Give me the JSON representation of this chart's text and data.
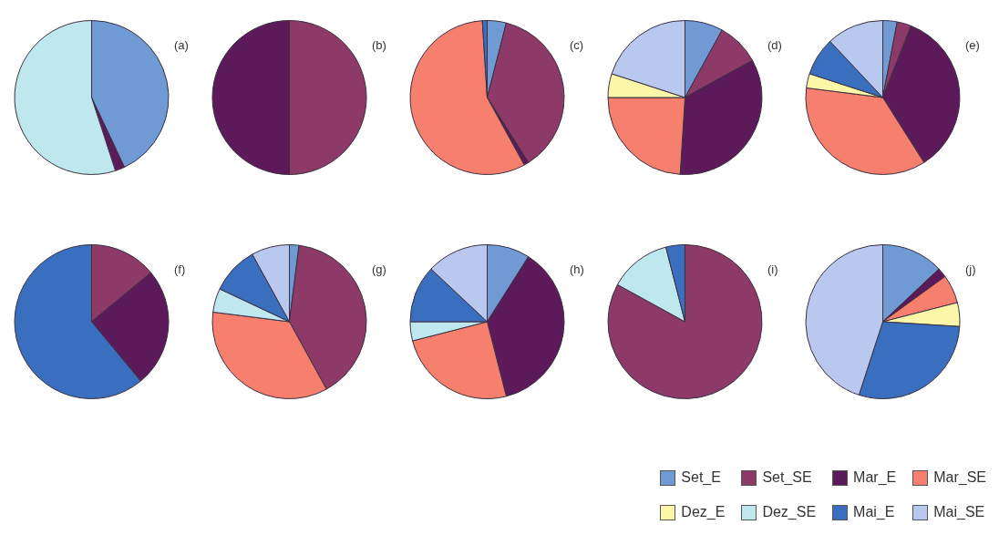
{
  "chart_data": {
    "type": "pie",
    "legend": "bottom right",
    "categories": [
      "Set_E",
      "Set_SE",
      "Mar_E",
      "Mar_SE",
      "Dez_E",
      "Dez_SE",
      "Mai_E",
      "Mai_SE"
    ],
    "colors": [
      "#6f9ad4",
      "#8e3a68",
      "#5c1a5a",
      "#f77f6d",
      "#fcf6a8",
      "#bfe8ee",
      "#3a6fbf",
      "#b8c8ef"
    ],
    "series": [
      {
        "name": "(a)",
        "values": [
          43,
          null,
          2,
          null,
          null,
          55,
          null,
          null
        ]
      },
      {
        "name": "(b)",
        "values": [
          null,
          50,
          50,
          null,
          null,
          null,
          null,
          null
        ]
      },
      {
        "name": "(c)",
        "values": [
          4,
          37,
          1,
          57,
          null,
          null,
          1,
          null
        ]
      },
      {
        "name": "(d)",
        "values": [
          8,
          9,
          34,
          24,
          5,
          null,
          null,
          20
        ]
      },
      {
        "name": "(e)",
        "values": [
          3,
          3,
          35,
          36,
          3,
          null,
          8,
          12
        ]
      },
      {
        "name": "(f)",
        "values": [
          null,
          14,
          25,
          null,
          null,
          null,
          61,
          null
        ]
      },
      {
        "name": "(g)",
        "values": [
          2,
          40,
          null,
          35,
          null,
          5,
          10,
          8
        ]
      },
      {
        "name": "(h)",
        "values": [
          9,
          null,
          37,
          25,
          null,
          4,
          12,
          13
        ]
      },
      {
        "name": "(i)",
        "values": [
          null,
          83,
          null,
          null,
          null,
          13,
          4,
          null
        ]
      },
      {
        "name": "(j)",
        "values": [
          13,
          null,
          2,
          6,
          5,
          null,
          29,
          45
        ]
      }
    ]
  }
}
